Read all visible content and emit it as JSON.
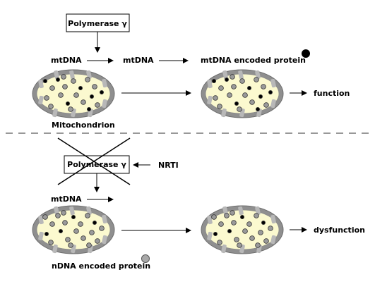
{
  "top_panel": {
    "enzyme_label": "Polymerase γ",
    "mtdna_label_1": "mtDNA",
    "mtdna_label_2": "mtDNA",
    "protein_label": "mtDNA encoded protein",
    "organelle_label": "Mitochondrion",
    "outcome_label": "function"
  },
  "bottom_panel": {
    "enzyme_label": "Polymerase γ",
    "inhibitor_label": "NRTI",
    "mtdna_label": "mtDNA",
    "nuclear_protein_label": "nDNA encoded protein",
    "outcome_label": "dysfunction"
  },
  "colors": {
    "membrane": "#8f8f8f",
    "matrix": "#fbf9cf",
    "mtdna_protein_dot": "#000000",
    "ndna_protein_dot": "#a9a9a9",
    "divider": "#777777"
  }
}
